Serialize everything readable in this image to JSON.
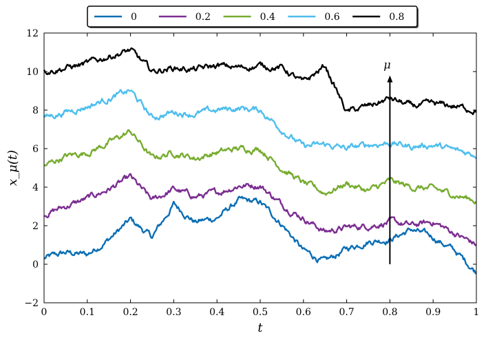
{
  "chart_data": {
    "type": "line",
    "title": "",
    "xlabel": "t",
    "ylabel": "x_μ(t)",
    "xlim": [
      0,
      1
    ],
    "ylim": [
      -2,
      12
    ],
    "xticks": [
      0,
      0.1,
      0.2,
      0.3,
      0.4,
      0.5,
      0.6,
      0.7,
      0.8,
      0.9,
      1
    ],
    "xtick_labels": [
      "0",
      "0.1",
      "0.2",
      "0.3",
      "0.4",
      "0.5",
      "0.6",
      "0.7",
      "0.8",
      "0.9",
      "1"
    ],
    "yticks": [
      -2,
      0,
      2,
      4,
      6,
      8,
      10,
      12
    ],
    "ytick_labels": [
      "−2",
      "0",
      "2",
      "4",
      "6",
      "8",
      "10",
      "12"
    ],
    "grid": false,
    "legend_position": "top (above plot)",
    "annotation": {
      "label": "μ",
      "arrow_x": 0.8,
      "arrow_from_y": 0,
      "arrow_to_y": 9.8
    },
    "x": [
      0,
      0.05,
      0.1,
      0.15,
      0.2,
      0.25,
      0.3,
      0.35,
      0.4,
      0.45,
      0.5,
      0.55,
      0.6,
      0.65,
      0.7,
      0.75,
      0.8,
      0.85,
      0.9,
      0.95,
      1
    ],
    "series": [
      {
        "name": "0",
        "color": "#0a6eb4",
        "values": [
          0.3,
          0.6,
          0.5,
          1.3,
          2.3,
          1.4,
          3.1,
          2.2,
          2.4,
          3.3,
          3.2,
          2.1,
          0.7,
          0.1,
          0.8,
          1.2,
          1.3,
          1.8,
          1.4,
          0.7,
          -0.4
        ]
      },
      {
        "name": "0.2",
        "color": "#7b2d91",
        "values": [
          2.6,
          3.0,
          3.4,
          3.9,
          4.5,
          3.3,
          3.9,
          3.5,
          3.7,
          4.1,
          4.1,
          3.1,
          2.4,
          1.7,
          1.9,
          2.0,
          2.2,
          2.0,
          2.2,
          1.6,
          1.0
        ]
      },
      {
        "name": "0.4",
        "color": "#77ac30",
        "values": [
          5.1,
          5.6,
          5.8,
          6.3,
          6.9,
          5.5,
          5.8,
          5.5,
          5.8,
          6.0,
          6.0,
          5.0,
          4.2,
          3.7,
          4.2,
          3.8,
          4.3,
          4.0,
          3.9,
          3.6,
          3.3
        ]
      },
      {
        "name": "0.6",
        "color": "#4dbeee",
        "values": [
          7.6,
          7.9,
          8.2,
          8.6,
          9.0,
          7.6,
          7.9,
          7.8,
          8.0,
          8.1,
          8.0,
          7.0,
          6.1,
          6.2,
          6.0,
          6.2,
          6.3,
          6.1,
          6.2,
          5.9,
          5.7
        ]
      },
      {
        "name": "0.8",
        "color": "#000000",
        "values": [
          10.0,
          10.2,
          10.4,
          10.8,
          11.1,
          10.0,
          10.2,
          10.1,
          10.3,
          10.2,
          10.3,
          10.2,
          9.4,
          10.3,
          7.9,
          8.2,
          8.6,
          8.2,
          8.3,
          8.2,
          8.0
        ]
      }
    ]
  }
}
